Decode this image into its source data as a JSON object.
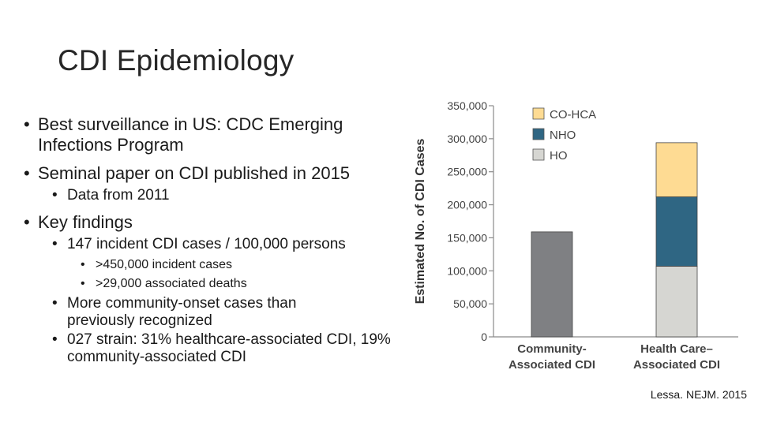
{
  "slide": {
    "title": "CDI Epidemiology",
    "bullets": [
      {
        "text": "Best surveillance in US: CDC Emerging Infections Program"
      },
      {
        "text": "Seminal paper on CDI published in 2015"
      },
      {
        "text": "Data from 2011"
      },
      {
        "text": "Key findings"
      },
      {
        "text": "147 incident CDI cases / 100,000 persons"
      },
      {
        "text": ">450,000 incident cases"
      },
      {
        "text": ">29,000 associated deaths"
      },
      {
        "text": "More community-onset cases than previously recognized"
      },
      {
        "text": "027 strain: 31% healthcare-associated CDI, 19% community-associated CDI"
      }
    ],
    "source": "Lessa. NEJM. 2015"
  },
  "chart_data": {
    "type": "bar",
    "stacked": true,
    "title": "",
    "ylabel": "Estimated No. of CDI Cases",
    "xlabel": "",
    "ylim": [
      0,
      350000
    ],
    "yticks": [
      0,
      50000,
      100000,
      150000,
      200000,
      250000,
      300000,
      350000
    ],
    "ytick_labels": [
      "0",
      "50,000",
      "100,000",
      "150,000",
      "200,000",
      "250,000",
      "300,000",
      "350,000"
    ],
    "categories": [
      {
        "line1": "Community-",
        "line2": "Associated CDI"
      },
      {
        "line1": "Health Care–",
        "line2": "Associated CDI"
      }
    ],
    "total_series": {
      "name": "Community-Associated",
      "color": "#7f8083",
      "values": [
        159000,
        null
      ]
    },
    "series": [
      {
        "name": "HO",
        "color": "#d6d6d2",
        "values": [
          null,
          107000
        ]
      },
      {
        "name": "NHO",
        "color": "#2f6683",
        "values": [
          null,
          105000
        ]
      },
      {
        "name": "CO-HCA",
        "color": "#fedb93",
        "values": [
          null,
          82000
        ]
      }
    ],
    "legend": [
      "CO-HCA",
      "NHO",
      "HO"
    ],
    "legend_position": "top-left",
    "axis_color": "#8a8a8a"
  }
}
